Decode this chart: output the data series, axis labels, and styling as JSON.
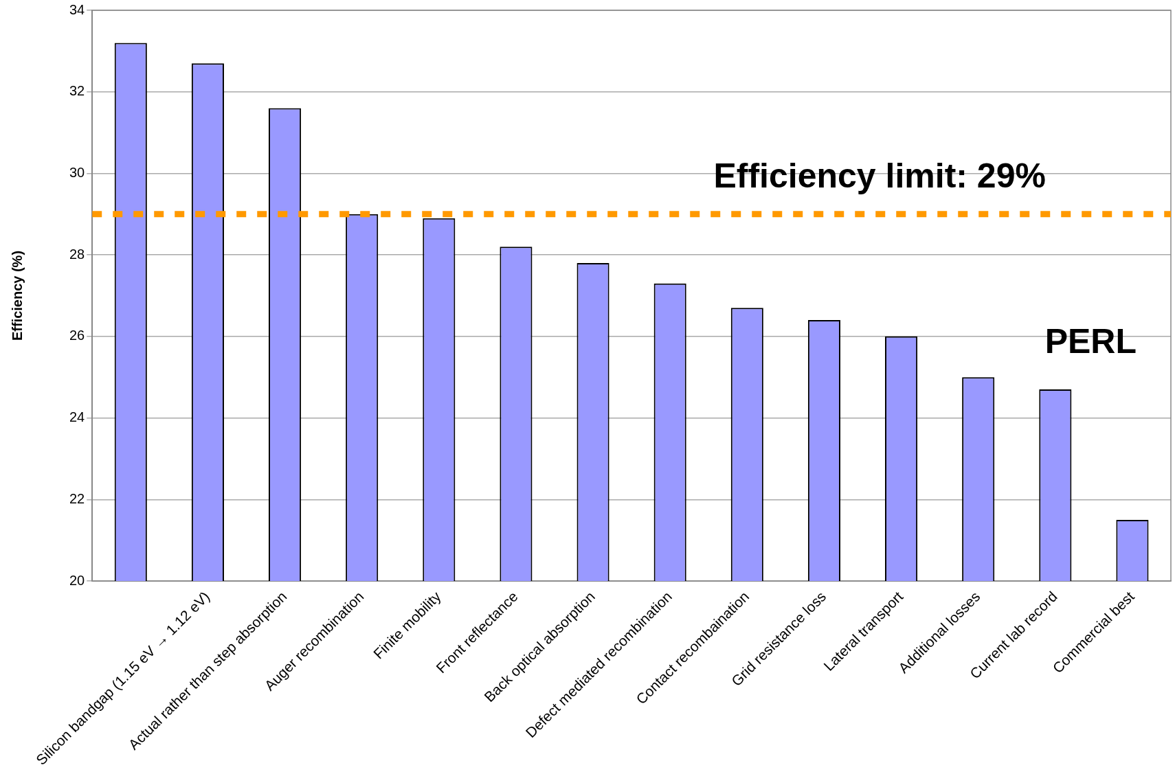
{
  "chart_data": {
    "type": "bar",
    "ylabel": "Efficiency (%)",
    "categories": [
      null,
      "Silicon bandgap (1.15 eV → 1.12 eV)",
      "Actual rather than step absorption",
      "Auger recombination",
      "Finite mobility",
      "Front reflectance",
      "Back optical absorption",
      "Defect mediated recombination",
      "Contact recombaination",
      "Grid resistance loss",
      "Lateral transport",
      "Additional losses",
      "Current lab record",
      "Commercial best"
    ],
    "values": [
      33.2,
      32.7,
      31.6,
      29.0,
      28.9,
      28.2,
      27.8,
      27.3,
      26.7,
      26.4,
      26.0,
      25.0,
      24.7,
      21.5
    ],
    "color": "#9999ff",
    "ylim": [
      20,
      34
    ],
    "yticks": [
      20,
      22,
      24,
      26,
      28,
      30,
      32,
      34
    ],
    "grid": "y",
    "legend": false,
    "ref_lines": [
      {
        "axis": "y",
        "value": 29,
        "label": "Efficiency limit: 29%",
        "color": "#ff9900",
        "line_style": "dotted"
      }
    ],
    "annotations": [
      "PERL"
    ]
  }
}
